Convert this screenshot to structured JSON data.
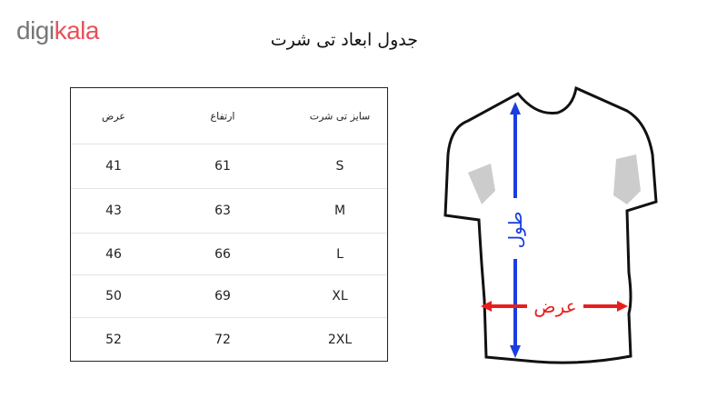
{
  "logo": {
    "part1": "digi",
    "part2": "kala"
  },
  "title": "جدول ابعاد تی شرت",
  "table": {
    "headers": {
      "width": "عرض",
      "height": "ارتفاع",
      "size": "سایز تی شرت"
    },
    "rows": [
      {
        "size": "S",
        "height": "61",
        "width": "41"
      },
      {
        "size": "M",
        "height": "63",
        "width": "43"
      },
      {
        "size": "L",
        "height": "66",
        "width": "46"
      },
      {
        "size": "XL",
        "height": "69",
        "width": "50"
      },
      {
        "size": "2XL",
        "height": "72",
        "width": "52"
      }
    ]
  },
  "diagram": {
    "length_label": "طول",
    "width_label": "عرض",
    "length_color": "#1a3fe0",
    "width_color": "#e81e1e"
  }
}
